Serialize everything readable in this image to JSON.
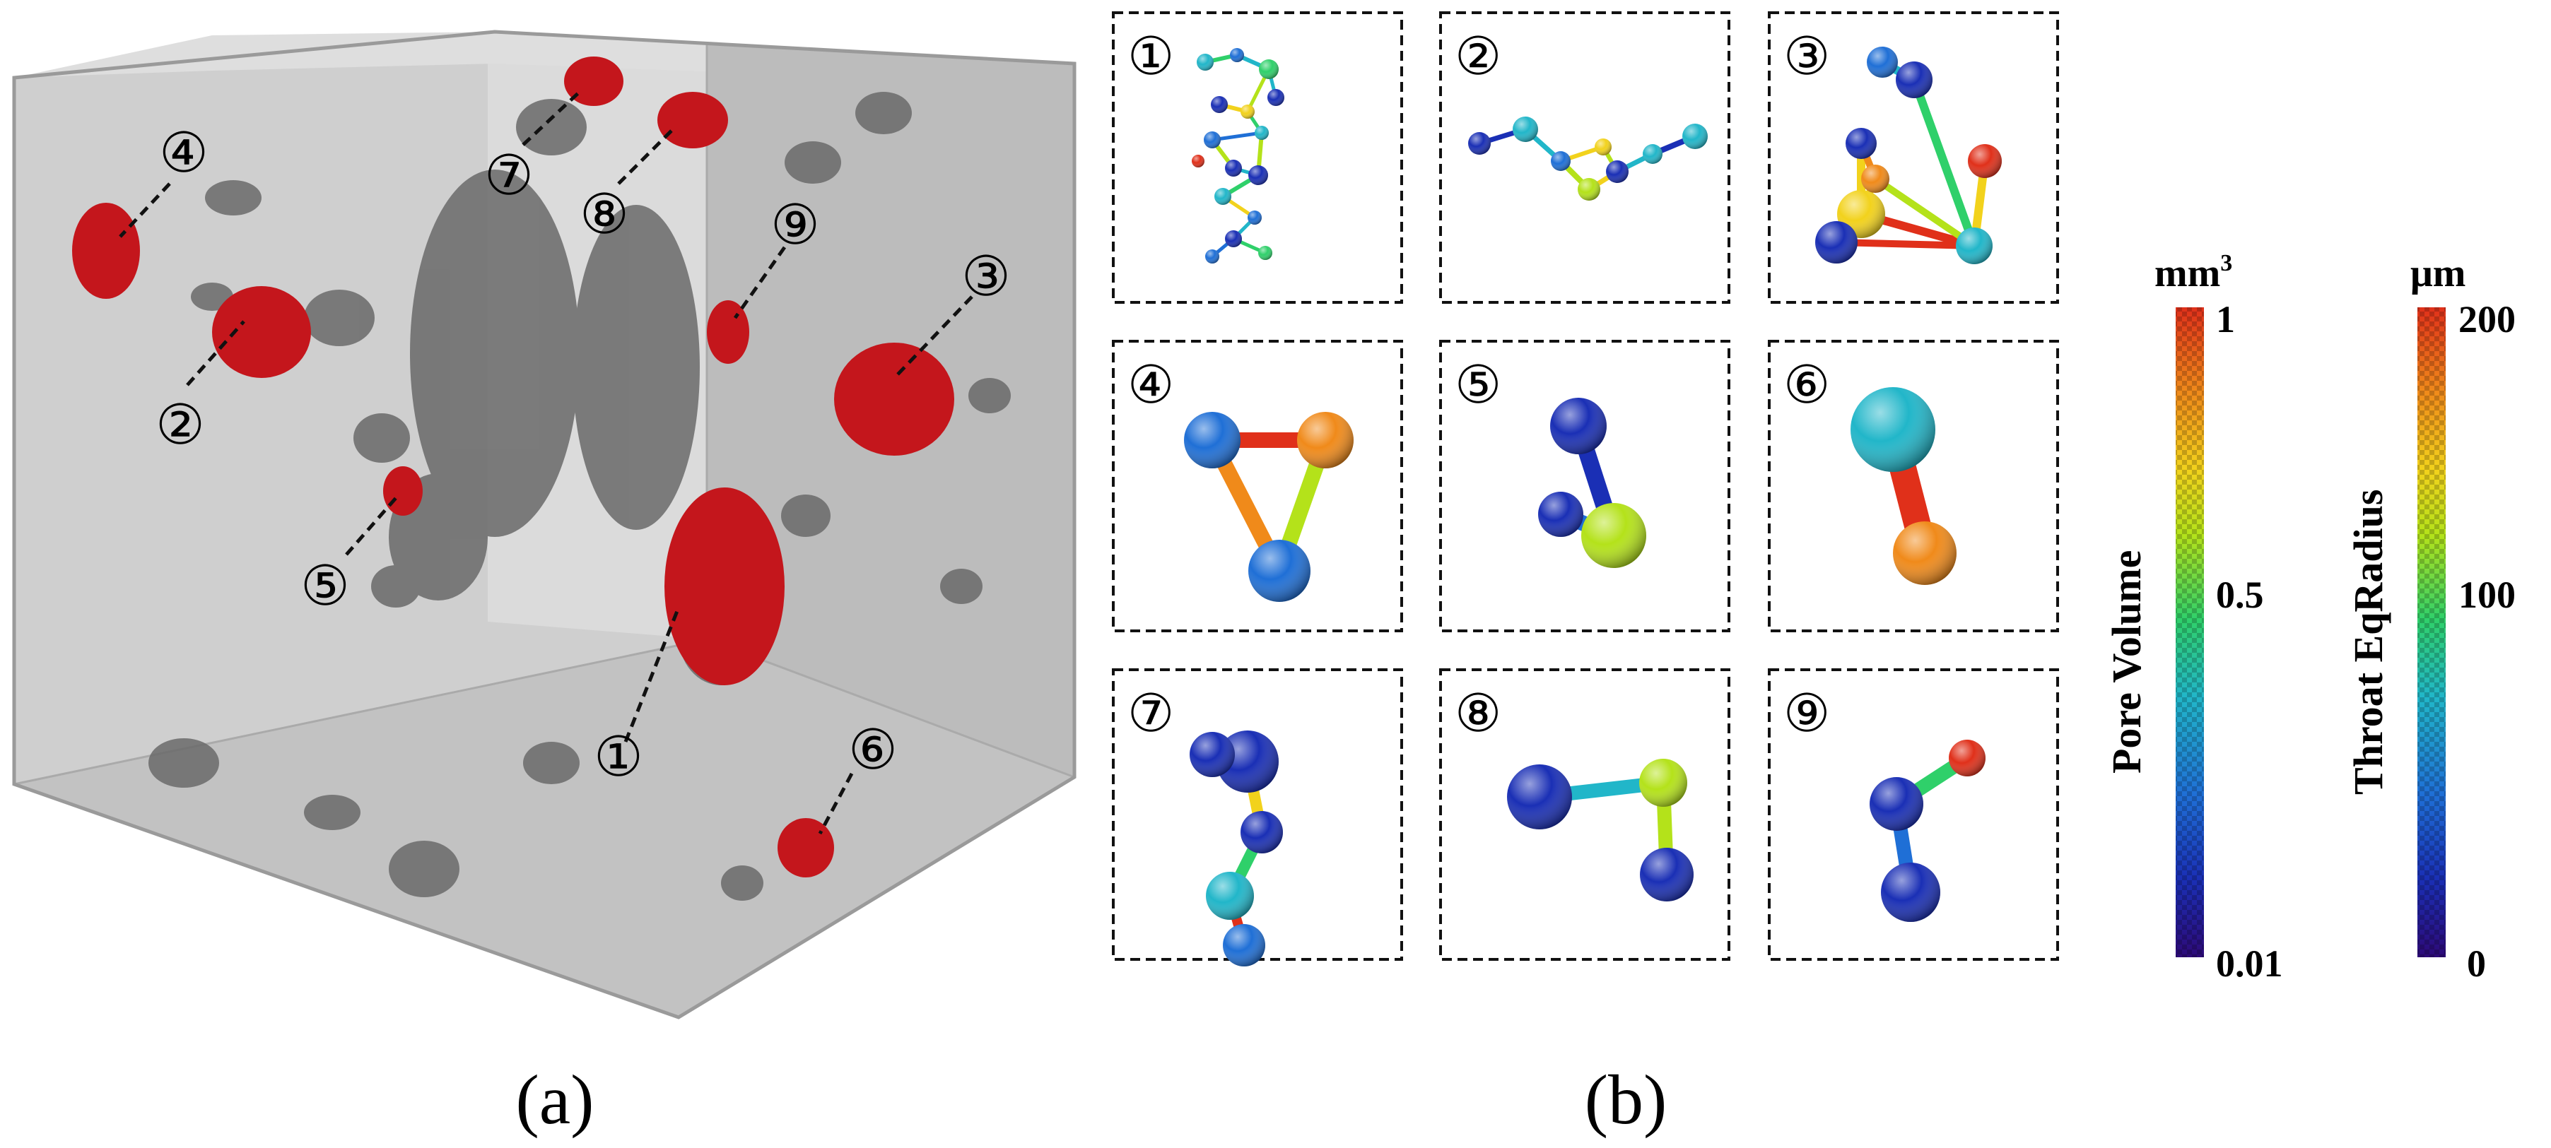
{
  "panel_a": {
    "caption": "(a)",
    "markers": [
      {
        "label": "①"
      },
      {
        "label": "②"
      },
      {
        "label": "③"
      },
      {
        "label": "④"
      },
      {
        "label": "⑤"
      },
      {
        "label": "⑥"
      },
      {
        "label": "⑦"
      },
      {
        "label": "⑧"
      },
      {
        "label": "⑨"
      }
    ]
  },
  "panel_b": {
    "caption": "(b)",
    "cells": [
      {
        "label": "①"
      },
      {
        "label": "②"
      },
      {
        "label": "③"
      },
      {
        "label": "④"
      },
      {
        "label": "⑤"
      },
      {
        "label": "⑥"
      },
      {
        "label": "⑦"
      },
      {
        "label": "⑧"
      },
      {
        "label": "⑨"
      }
    ]
  },
  "colorbars": {
    "pore_volume": {
      "unit": "mm",
      "unit_sup": "3",
      "title": "Pore Volume",
      "ticks": [
        "1",
        "0.5",
        "0.01"
      ]
    },
    "throat_radius": {
      "unit": "μm",
      "title": "Throat EqRadius",
      "ticks": [
        "200",
        "100",
        "0"
      ]
    }
  },
  "colors": {
    "cube_face": "#c9c9c9",
    "cube_top": "#dcdcdc",
    "cube_right": "#b8b8b8",
    "cube_bottom": "#bfbfbf",
    "pores_gray": "#6f6f6f",
    "pores_red": "#c4161c",
    "jet": [
      "#2d0a78",
      "#1a2fb5",
      "#1f6fd6",
      "#21b6c9",
      "#2fd06a",
      "#b4e21a",
      "#f2d21c",
      "#f08a1a",
      "#e0301a"
    ]
  }
}
